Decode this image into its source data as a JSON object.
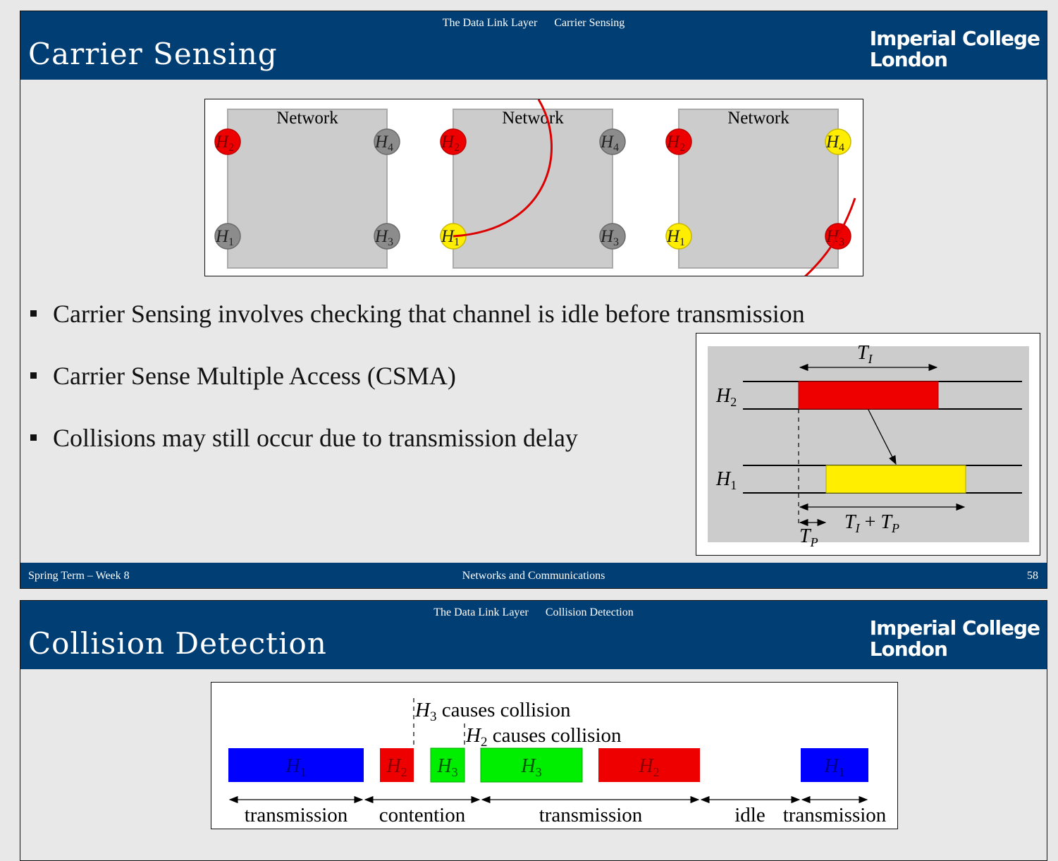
{
  "slide1": {
    "breadcrumb": [
      "The Data Link Layer",
      "Carrier Sensing"
    ],
    "title": "Carrier Sensing",
    "logo": [
      "Imperial College",
      "London"
    ],
    "networks": [
      {
        "label": "Network",
        "hosts": [
          {
            "name": "H",
            "sub": "2",
            "color": "#ee0000"
          },
          {
            "name": "H",
            "sub": "4",
            "color": "#8c8c8c"
          },
          {
            "name": "H",
            "sub": "1",
            "color": "#8c8c8c"
          },
          {
            "name": "H",
            "sub": "3",
            "color": "#8c8c8c"
          }
        ]
      },
      {
        "label": "Network",
        "hosts": [
          {
            "name": "H",
            "sub": "2",
            "color": "#ee0000"
          },
          {
            "name": "H",
            "sub": "4",
            "color": "#8c8c8c"
          },
          {
            "name": "H",
            "sub": "1",
            "color": "#ffee00"
          },
          {
            "name": "H",
            "sub": "3",
            "color": "#8c8c8c"
          }
        ]
      },
      {
        "label": "Network",
        "hosts": [
          {
            "name": "H",
            "sub": "2",
            "color": "#ee0000"
          },
          {
            "name": "H",
            "sub": "4",
            "color": "#ffee00"
          },
          {
            "name": "H",
            "sub": "1",
            "color": "#ffee00"
          },
          {
            "name": "H",
            "sub": "3",
            "color": "#ee0000"
          }
        ]
      }
    ],
    "bullets": [
      "Carrier Sensing involves checking that channel is idle before transmission",
      "Carrier Sense Multiple Access (CSMA)",
      "Collisions may still occur due to transmission delay"
    ],
    "timing": {
      "top_label": {
        "main": "T",
        "sub": "I"
      },
      "h2_label": {
        "main": "H",
        "sub": "2"
      },
      "h1_label": {
        "main": "H",
        "sub": "1"
      },
      "sum_label": {
        "a": "T",
        "a_sub": "I",
        "op": " + ",
        "b": "T",
        "b_sub": "P"
      },
      "tp_label": {
        "main": "T",
        "sub": "P"
      }
    },
    "footer": {
      "left": "Spring Term – Week 8",
      "center": "Networks and Communications",
      "right": "58"
    }
  },
  "slide2": {
    "breadcrumb": [
      "The Data Link Layer",
      "Collision Detection"
    ],
    "title": "Collision Detection",
    "logo": [
      "Imperial College",
      "London"
    ],
    "colors": {
      "blue": "#0000ff",
      "red": "#ee0000",
      "green": "#00ee00"
    },
    "blocks": [
      {
        "name": "H",
        "sub": "1"
      },
      {
        "name": "H",
        "sub": "2"
      },
      {
        "name": "H",
        "sub": "3"
      },
      {
        "name": "H",
        "sub": "3"
      },
      {
        "name": "H",
        "sub": "2"
      },
      {
        "name": "H",
        "sub": "1"
      }
    ],
    "annotations": [
      {
        "host": "H",
        "sub": "3",
        "text": " causes collision"
      },
      {
        "host": "H",
        "sub": "2",
        "text": " causes collision"
      }
    ],
    "periods": [
      "transmission",
      "contention",
      "transmission",
      "idle",
      "transmission"
    ]
  }
}
